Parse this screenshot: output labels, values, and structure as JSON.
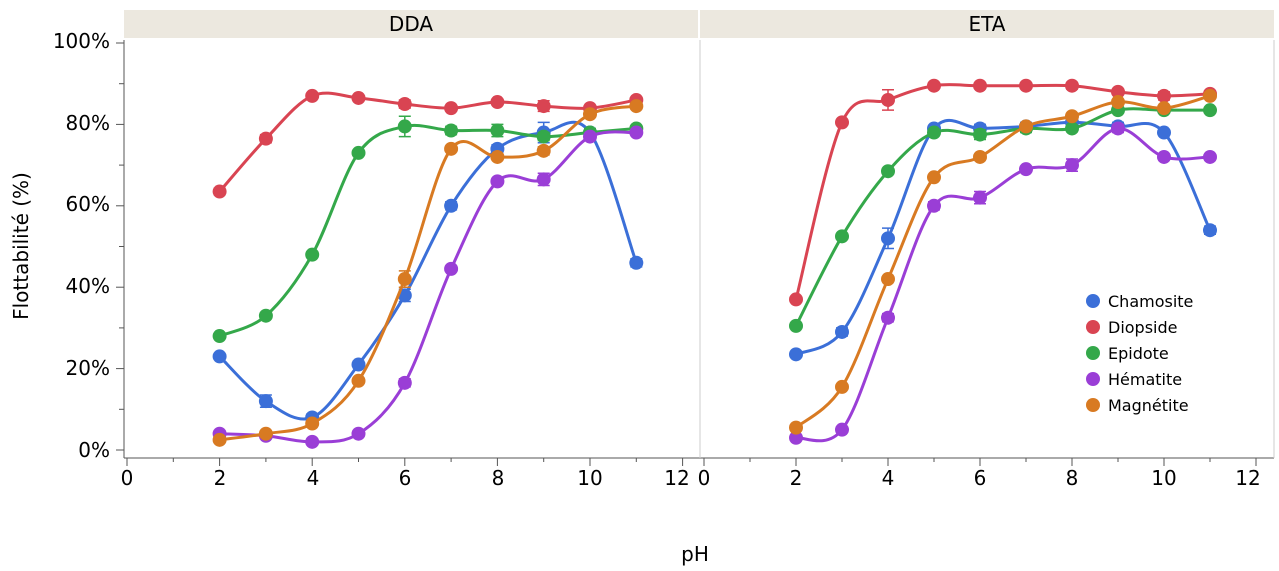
{
  "chart_data": {
    "type": "line",
    "xlabel": "pH",
    "ylabel": "Flottabilité (%)",
    "xlim": [
      0,
      12
    ],
    "ylim": [
      0,
      100
    ],
    "xticks": [
      "0",
      "2",
      "4",
      "6",
      "8",
      "10",
      "12"
    ],
    "yticks": [
      "0%",
      "20%",
      "40%",
      "60%",
      "80%",
      "100%"
    ],
    "legend": {
      "placement": "bottom-right of ETA panel",
      "entries": [
        "Chamosite",
        "Diopside",
        "Epidote",
        "Hématite",
        "Magnétite"
      ]
    },
    "colors": {
      "Chamosite": "#3b6fd8",
      "Diopside": "#d94452",
      "Epidote": "#34a84a",
      "Hématite": "#9a3ed6",
      "Magnétite": "#d87a22"
    },
    "panels": [
      {
        "title": "DDA",
        "series": [
          {
            "name": "Chamosite",
            "x": [
              2,
              3,
              4,
              5,
              6,
              7,
              8,
              9,
              10,
              11
            ],
            "y": [
              23,
              12,
              8,
              21,
              38,
              60,
              74,
              78,
              78,
              46
            ],
            "err": [
              0.5,
              1.5,
              0.8,
              0.8,
              1.5,
              1,
              1,
              2.5,
              1,
              1
            ]
          },
          {
            "name": "Diopside",
            "x": [
              2,
              3,
              4,
              5,
              6,
              7,
              8,
              9,
              10,
              11
            ],
            "y": [
              63.5,
              76.5,
              87,
              86.5,
              85,
              84,
              85.5,
              84.5,
              84,
              86
            ],
            "err": [
              0.8,
              1,
              0.5,
              0.5,
              1,
              0.5,
              0.7,
              1.3,
              0.5,
              0.5
            ]
          },
          {
            "name": "Epidote",
            "x": [
              2,
              3,
              4,
              5,
              6,
              7,
              8,
              9,
              10,
              11
            ],
            "y": [
              28,
              33,
              48,
              73,
              79.5,
              78.5,
              78.5,
              77,
              78,
              79
            ],
            "err": [
              0.5,
              0.5,
              0.5,
              0.7,
              2.5,
              1,
              1.5,
              1,
              1,
              0.5
            ]
          },
          {
            "name": "Hématite",
            "x": [
              2,
              3,
              4,
              5,
              6,
              7,
              8,
              9,
              10,
              11
            ],
            "y": [
              4,
              3.5,
              2,
              4,
              16.5,
              44.5,
              66,
              66.5,
              77,
              78
            ],
            "err": [
              0.5,
              0.5,
              0.5,
              0.5,
              1,
              0.5,
              0.5,
              1.5,
              0.5,
              0.5
            ]
          },
          {
            "name": "Magnétite",
            "x": [
              2,
              3,
              4,
              5,
              6,
              7,
              8,
              9,
              10,
              11
            ],
            "y": [
              2.5,
              4,
              6.5,
              17,
              42,
              74,
              72,
              73.5,
              82.5,
              84.5
            ],
            "err": [
              0.5,
              0.5,
              0.5,
              0.5,
              2,
              0.5,
              0.5,
              1,
              0.5,
              0.5
            ]
          }
        ]
      },
      {
        "title": "ETA",
        "series": [
          {
            "name": "Chamosite",
            "x": [
              2,
              3,
              4,
              5,
              6,
              7,
              8,
              9,
              10,
              11
            ],
            "y": [
              23.5,
              29,
              52,
              79,
              79,
              79.5,
              80.5,
              79.5,
              78,
              54
            ],
            "err": [
              0.5,
              1,
              2.5,
              0.5,
              1,
              1,
              1,
              1,
              0.5,
              1
            ]
          },
          {
            "name": "Diopside",
            "x": [
              2,
              3,
              4,
              5,
              6,
              7,
              8,
              9,
              10,
              11
            ],
            "y": [
              37,
              80.5,
              86,
              89.5,
              89.5,
              89.5,
              89.5,
              88,
              87,
              87.5
            ],
            "err": [
              0.5,
              0.5,
              2.5,
              0.5,
              0.5,
              0.5,
              0.8,
              0.5,
              1,
              0.5
            ]
          },
          {
            "name": "Epidote",
            "x": [
              2,
              3,
              4,
              5,
              6,
              7,
              8,
              9,
              10,
              11
            ],
            "y": [
              30.5,
              52.5,
              68.5,
              78,
              77.5,
              79,
              79,
              83.5,
              83.5,
              83.5
            ],
            "err": [
              0.5,
              0.5,
              0.5,
              0.5,
              1.2,
              1,
              0.5,
              0.5,
              0.5,
              0.5
            ]
          },
          {
            "name": "Hématite",
            "x": [
              2,
              3,
              4,
              5,
              6,
              7,
              8,
              9,
              10,
              11
            ],
            "y": [
              3,
              5,
              32.5,
              60,
              62,
              69,
              70,
              79,
              72,
              72
            ],
            "err": [
              0.5,
              0.5,
              1,
              1,
              1.5,
              0.5,
              1.5,
              1,
              0.5,
              0.5
            ]
          },
          {
            "name": "Magnétite",
            "x": [
              2,
              3,
              4,
              5,
              6,
              7,
              8,
              9,
              10,
              11
            ],
            "y": [
              5.5,
              15.5,
              42,
              67,
              72,
              79.5,
              82,
              85.5,
              84,
              87
            ],
            "err": [
              0.5,
              0.5,
              0.5,
              0.5,
              0.5,
              0.5,
              0.5,
              0.5,
              0.5,
              0.5
            ]
          }
        ]
      }
    ]
  }
}
